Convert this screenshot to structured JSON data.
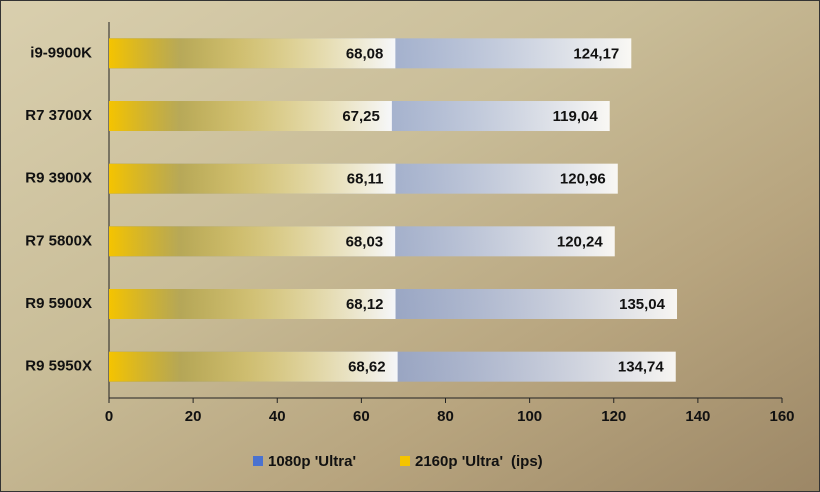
{
  "chart_data": {
    "type": "bar",
    "orientation": "horizontal",
    "overlap": true,
    "categories": [
      "i9-9900K",
      "R7 3700X",
      "R9 3900X",
      "R7 5800X",
      "R9 5900X",
      "R9 5950X"
    ],
    "series": [
      {
        "name": "1080p 'Ultra'",
        "color": "#4a72d0",
        "values": [
          124.17,
          119.04,
          120.96,
          120.24,
          135.04,
          134.74
        ],
        "value_labels": [
          "124,17",
          "119,04",
          "120,96",
          "120,24",
          "135,04",
          "134,74"
        ]
      },
      {
        "name": "2160p 'Ultra'",
        "color": "#f5c400",
        "values": [
          68.08,
          67.25,
          68.11,
          68.03,
          68.12,
          68.62
        ],
        "value_labels": [
          "68,08",
          "67,25",
          "68,11",
          "68,03",
          "68,12",
          "68,62"
        ]
      }
    ],
    "unit": "(ips)",
    "xlim": [
      0,
      160
    ],
    "xticks": [
      0,
      20,
      40,
      60,
      80,
      100,
      120,
      140,
      160
    ]
  }
}
